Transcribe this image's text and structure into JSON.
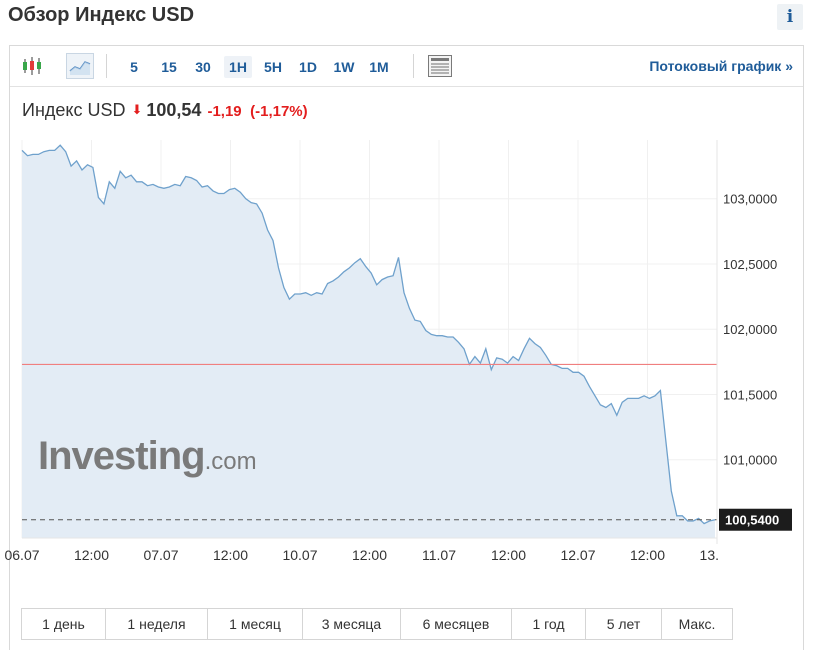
{
  "page": {
    "title": "Обзор Индекс USD",
    "info_label": "i"
  },
  "toolbar": {
    "timeframes": [
      "5",
      "15",
      "30",
      "1H",
      "5H",
      "1D",
      "1W",
      "1M"
    ],
    "active_timeframe": "1H",
    "streaming_link": "Потоковый график »"
  },
  "quote": {
    "name": "Индекс USD",
    "price": "100,54",
    "change": "-1,19",
    "change_pct": "(-1,17%)",
    "direction": "down",
    "down_color": "#e31e1e"
  },
  "chart_data": {
    "type": "area",
    "title": "",
    "xlabel": "",
    "ylabel": "",
    "x_tick_labels": [
      "06.07",
      "12:00",
      "07.07",
      "12:00",
      "10.07",
      "12:00",
      "11.07",
      "12:00",
      "12.07",
      "12:00",
      "13."
    ],
    "y_tick_labels": [
      "103,0000",
      "102,5000",
      "102,0000",
      "101,5000",
      "101,0000"
    ],
    "y_ticks": [
      103.0,
      102.5,
      102.0,
      101.5,
      101.0
    ],
    "ylim": [
      100.4,
      103.45
    ],
    "last_value_label": "100,5400",
    "last_value": 100.54,
    "reference_line": 101.73,
    "line_color": "#6fa1cc",
    "fill_color": "#e3ecf5",
    "reference_color": "#f07f7f",
    "grid": true,
    "series": [
      {
        "values": [
          103.37,
          103.33,
          103.34,
          103.34,
          103.36,
          103.37,
          103.37,
          103.41,
          103.36,
          103.25,
          103.29,
          103.22,
          103.26,
          103.24,
          103.01,
          102.96,
          103.13,
          103.08,
          103.21,
          103.16,
          103.18,
          103.13,
          103.13,
          103.1,
          103.11,
          103.09,
          103.08,
          103.09,
          103.11,
          103.1,
          103.17,
          103.16,
          103.14,
          103.09,
          103.1,
          103.06,
          103.04,
          103.04,
          103.07,
          103.08,
          103.05,
          103.0,
          102.97,
          102.96,
          102.89,
          102.76,
          102.68,
          102.47,
          102.32,
          102.23,
          102.27,
          102.27,
          102.28,
          102.26,
          102.28,
          102.27,
          102.35,
          102.37,
          102.4,
          102.44,
          102.47,
          102.51,
          102.54,
          102.48,
          102.43,
          102.34,
          102.38,
          102.4,
          102.41,
          102.55,
          102.28,
          102.16,
          102.07,
          102.06,
          101.99,
          101.96,
          101.95,
          101.95,
          101.94,
          101.94,
          101.9,
          101.85,
          101.73,
          101.79,
          101.74,
          101.85,
          101.69,
          101.78,
          101.77,
          101.74,
          101.79,
          101.76,
          101.85,
          101.93,
          101.89,
          101.86,
          101.8,
          101.73,
          101.72,
          101.7,
          101.7,
          101.67,
          101.67,
          101.64,
          101.56,
          101.49,
          101.42,
          101.4,
          101.43,
          101.34,
          101.44,
          101.47,
          101.47,
          101.47,
          101.49,
          101.47,
          101.49,
          101.53,
          101.14,
          100.76,
          100.57,
          100.57,
          100.53,
          100.53,
          100.55,
          100.51,
          100.53,
          100.54
        ]
      }
    ]
  },
  "watermark": {
    "main": "Investing",
    "suffix": ".com"
  },
  "periods": [
    "1 день",
    "1 неделя",
    "1 месяц",
    "3 месяца",
    "6 месяцев",
    "1 год",
    "5 лет",
    "Макс."
  ],
  "colors": {
    "accent": "#1f5c99",
    "text": "#333333",
    "border": "#d5d5d5"
  }
}
